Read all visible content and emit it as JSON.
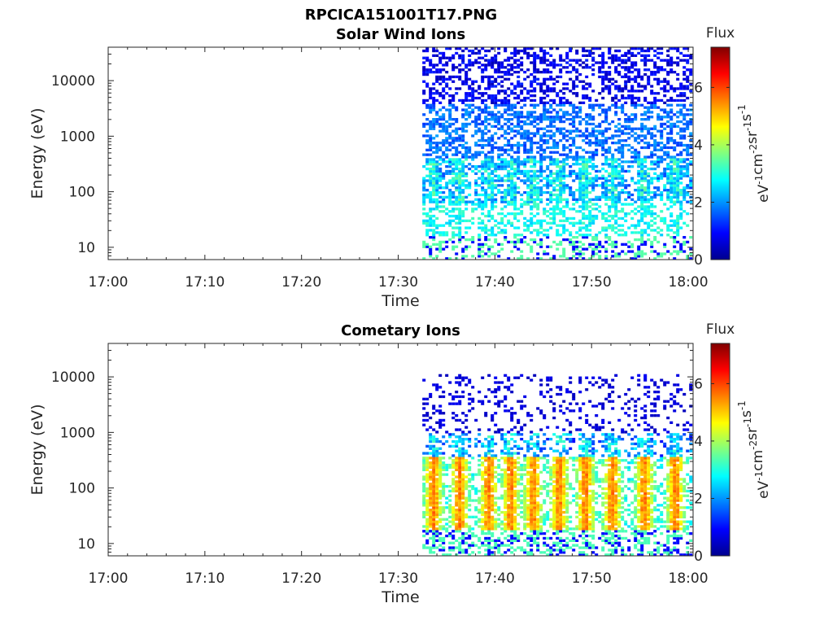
{
  "figure": {
    "title": "RPCICA151001T17.PNG"
  },
  "colormap": [
    "#00008f",
    "#0000ff",
    "#0080ff",
    "#00ffff",
    "#80ff80",
    "#ffff00",
    "#ff8000",
    "#ff0000",
    "#800000"
  ],
  "chart_data": [
    {
      "type": "heatmap",
      "title": "Solar Wind Ions",
      "xlabel": "Time",
      "ylabel": "Energy (eV)",
      "x_ticks": [
        "17:00",
        "17:10",
        "17:20",
        "17:30",
        "17:40",
        "17:50",
        "18:00"
      ],
      "x_tick_minutes": [
        0,
        10,
        20,
        30,
        40,
        50,
        60
      ],
      "xlim_minutes": [
        0,
        60.5
      ],
      "y_scale": "log",
      "y_ticks": [
        "10",
        "100",
        "1000",
        "10000"
      ],
      "y_tick_values": [
        10,
        100,
        1000,
        10000
      ],
      "ylim": [
        6,
        40000
      ],
      "data_start_minute": 32.5,
      "data_end_minute": 60.5,
      "bursts_minute": [
        33.5,
        36.2,
        39.2,
        41.5,
        43.8,
        46.5,
        49.2,
        52.0,
        55.3,
        58.5
      ],
      "profile": "solar",
      "colorbar": {
        "label": "Flux",
        "unit": "eV-1cm-2sr-1s-1",
        "unit_parts": [
          [
            "eV",
            "-1"
          ],
          [
            "cm",
            "-2"
          ],
          [
            "sr",
            "-1"
          ],
          [
            "s",
            "-1"
          ]
        ],
        "range": [
          0,
          7.4
        ],
        "ticks": [
          "0",
          "2",
          "4",
          "6"
        ],
        "tick_values": [
          0,
          2,
          4,
          6
        ]
      }
    },
    {
      "type": "heatmap",
      "title": "Cometary Ions",
      "xlabel": "Time",
      "ylabel": "Energy (eV)",
      "x_ticks": [
        "17:00",
        "17:10",
        "17:20",
        "17:30",
        "17:40",
        "17:50",
        "18:00"
      ],
      "x_tick_minutes": [
        0,
        10,
        20,
        30,
        40,
        50,
        60
      ],
      "xlim_minutes": [
        0,
        60.5
      ],
      "y_scale": "log",
      "y_ticks": [
        "10",
        "100",
        "1000",
        "10000"
      ],
      "y_tick_values": [
        10,
        100,
        1000,
        10000
      ],
      "ylim": [
        6,
        40000
      ],
      "data_start_minute": 32.5,
      "data_end_minute": 60.5,
      "bursts_minute": [
        33.5,
        36.2,
        39.2,
        41.5,
        43.8,
        46.5,
        49.2,
        52.0,
        55.3,
        58.5
      ],
      "profile": "cometary",
      "colorbar": {
        "label": "Flux",
        "unit": "eV-1cm-2sr-1s-1",
        "unit_parts": [
          [
            "eV",
            "-1"
          ],
          [
            "cm",
            "-2"
          ],
          [
            "sr",
            "-1"
          ],
          [
            "s",
            "-1"
          ]
        ],
        "range": [
          0,
          7.4
        ],
        "ticks": [
          "0",
          "2",
          "4",
          "6"
        ],
        "tick_values": [
          0,
          2,
          4,
          6
        ]
      }
    }
  ]
}
